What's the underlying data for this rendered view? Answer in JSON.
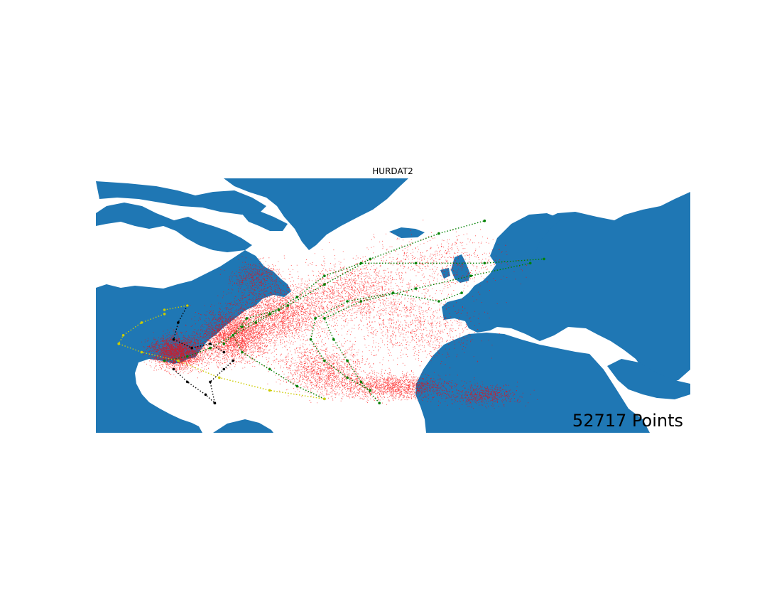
{
  "title": "HURDAT2",
  "counter_label": "52717 Points",
  "colors": {
    "land": "#1f77b4",
    "ocean": "#ffffff",
    "all_points": "#ff0000",
    "track_green": "#008000",
    "track_black": "#000000",
    "track_yellow": "#cccc00"
  },
  "map": {
    "projection": "equirectangular",
    "lon_range": [
      -110,
      20
    ],
    "lat_range": [
      5,
      65
    ]
  },
  "point_cloud": {
    "total_points": 52717,
    "marker": "red-dot"
  },
  "highlighted_tracks": [
    {
      "color": "green",
      "points": [
        [
          -95,
          22
        ],
        [
          -90,
          23
        ],
        [
          -85,
          25
        ],
        [
          -80,
          28
        ],
        [
          -75,
          31
        ],
        [
          -68,
          35
        ],
        [
          -60,
          40
        ],
        [
          -50,
          46
        ],
        [
          -35,
          52
        ],
        [
          -25,
          55
        ]
      ]
    },
    {
      "color": "green",
      "points": [
        [
          -82,
          26
        ],
        [
          -78,
          30
        ],
        [
          -72,
          33
        ],
        [
          -66,
          37
        ],
        [
          -60,
          42
        ],
        [
          -52,
          45
        ],
        [
          -40,
          45
        ],
        [
          -25,
          45
        ],
        [
          -12,
          46
        ]
      ]
    },
    {
      "color": "green",
      "points": [
        [
          -50,
          15
        ],
        [
          -55,
          18
        ],
        [
          -60,
          22
        ],
        [
          -63,
          27
        ],
        [
          -62,
          32
        ],
        [
          -55,
          36
        ],
        [
          -45,
          38
        ],
        [
          -35,
          36
        ],
        [
          -30,
          38
        ]
      ]
    },
    {
      "color": "green",
      "points": [
        [
          -48,
          12
        ],
        [
          -52,
          17
        ],
        [
          -55,
          22
        ],
        [
          -58,
          27
        ],
        [
          -60,
          32
        ],
        [
          -52,
          36
        ],
        [
          -40,
          39
        ],
        [
          -28,
          42
        ],
        [
          -15,
          45
        ]
      ]
    },
    {
      "color": "green",
      "points": [
        [
          -60,
          13
        ],
        [
          -66,
          16
        ],
        [
          -72,
          20
        ],
        [
          -78,
          24
        ],
        [
          -80,
          28
        ],
        [
          -77,
          32
        ],
        [
          -70,
          34
        ]
      ]
    },
    {
      "color": "black",
      "points": [
        [
          -90,
          35
        ],
        [
          -92,
          31
        ],
        [
          -93,
          27
        ],
        [
          -89,
          25
        ],
        [
          -85,
          26
        ],
        [
          -82,
          24
        ]
      ]
    },
    {
      "color": "black",
      "points": [
        [
          -93,
          20
        ],
        [
          -90,
          17
        ],
        [
          -86,
          14
        ],
        [
          -84,
          12
        ]
      ]
    },
    {
      "color": "black",
      "points": [
        [
          -84,
          12
        ],
        [
          -85,
          17
        ],
        [
          -82,
          20
        ],
        [
          -80,
          22
        ]
      ]
    },
    {
      "color": "yellow",
      "points": [
        [
          -95,
          33
        ],
        [
          -100,
          31
        ],
        [
          -104,
          28
        ],
        [
          -105,
          26
        ],
        [
          -100,
          24
        ],
        [
          -92,
          22
        ],
        [
          -83,
          18
        ],
        [
          -72,
          15
        ],
        [
          -60,
          13
        ]
      ]
    },
    {
      "color": "yellow",
      "points": [
        [
          -90,
          35
        ],
        [
          -95,
          34
        ]
      ]
    }
  ]
}
